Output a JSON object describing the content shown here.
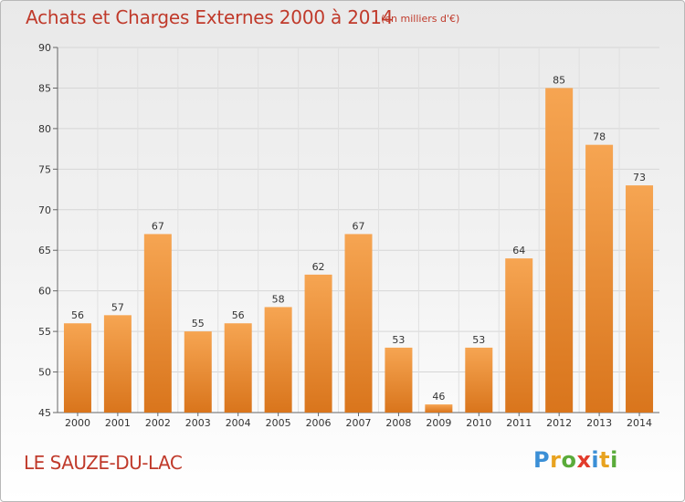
{
  "chart_data": {
    "type": "bar",
    "title": "Achats et Charges Externes 2000 à 2014",
    "unit_note": "(en milliers d'€)",
    "categories": [
      "2000",
      "2001",
      "2002",
      "2003",
      "2004",
      "2005",
      "2006",
      "2007",
      "2008",
      "2009",
      "2010",
      "2011",
      "2012",
      "2013",
      "2014"
    ],
    "values": [
      56,
      57,
      67,
      55,
      56,
      58,
      62,
      67,
      53,
      46,
      53,
      64,
      85,
      78,
      73
    ],
    "ylim": [
      45,
      90
    ],
    "yticks": [
      45,
      50,
      55,
      60,
      65,
      70,
      75,
      80,
      85,
      90
    ],
    "grid": true,
    "bar_color_top": "#f6a552",
    "bar_color_bottom": "#d9751c"
  },
  "footer": {
    "town": "LE SAUZE-DU-LAC",
    "logo": "Proxiti"
  },
  "logo_colors": [
    "#3b8fd6",
    "#e8a320",
    "#5aab3a",
    "#e23b2b",
    "#3b8fd6",
    "#e8a320",
    "#5aab3a"
  ]
}
